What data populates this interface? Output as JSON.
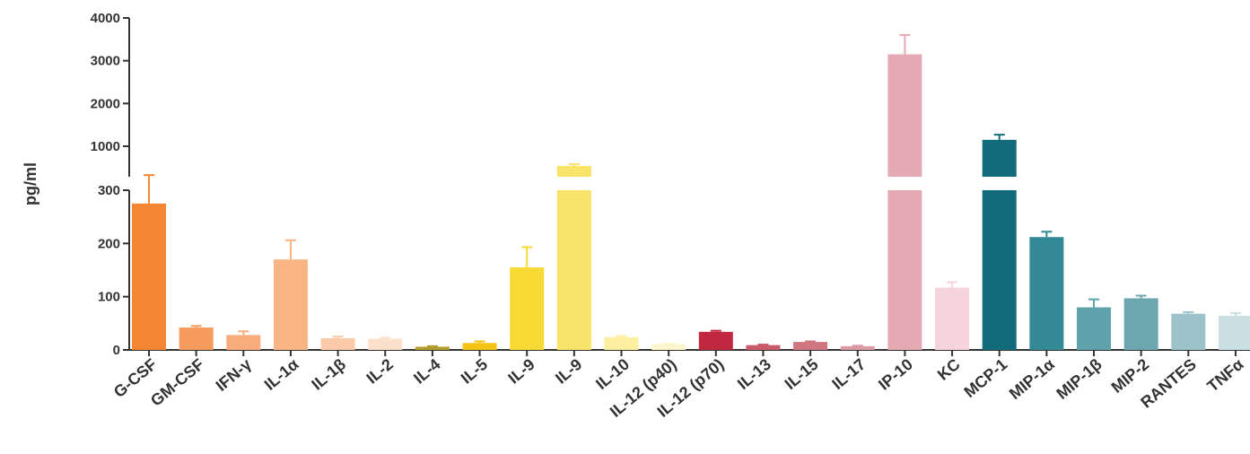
{
  "chart_data": {
    "type": "bar",
    "ylabel": "pg/ml",
    "xlabel": "",
    "axis_break": true,
    "ylim_lower": [
      0,
      300
    ],
    "ylim_upper": [
      300,
      4000
    ],
    "yticks": [
      0,
      100,
      200,
      300,
      1000,
      2000,
      3000,
      4000
    ],
    "categories": [
      "G-CSF",
      "GM-CSF",
      "IFN-γ",
      "IL-1α",
      "IL-1β",
      "IL-2",
      "IL-4",
      "IL-5",
      "IL-9",
      "IL-9",
      "IL-10",
      "IL-12 (p40)",
      "IL-12 (p70)",
      "IL-13",
      "IL-15",
      "IL-17",
      "IP-10",
      "KC",
      "MCP-1",
      "MIP-1α",
      "MIP-1β",
      "MIP-2",
      "RANTES",
      "TNFα"
    ],
    "values": [
      275,
      42,
      28,
      170,
      22,
      21,
      6,
      13,
      155,
      550,
      24,
      11,
      34,
      9,
      15,
      7,
      3150,
      117,
      1150,
      212,
      80,
      97,
      68,
      64
    ],
    "errors": [
      63,
      3,
      7,
      36,
      3,
      2,
      1,
      3,
      38,
      40,
      2,
      1,
      2,
      1,
      1,
      1,
      450,
      10,
      120,
      10,
      15,
      5,
      3,
      5
    ],
    "colors": [
      "#f58634",
      "#f69b5b",
      "#f8ac7c",
      "#fbb584",
      "#fcc9a9",
      "#fde0cc",
      "#b39c2e",
      "#f5c314",
      "#f9da35",
      "#f9e46a",
      "#fcef9f",
      "#fdf5cc",
      "#c1273e",
      "#c95a69",
      "#d17681",
      "#dc9aa4",
      "#e5a9b3",
      "#f5d5db",
      "#126b7a",
      "#338a96",
      "#5fa2ab",
      "#6ca7af",
      "#9bc3c9",
      "#c9dfe2"
    ],
    "tick_labels": {
      "y0": "0",
      "y100": "100",
      "y200": "200",
      "y300": "300",
      "y1000": "1000",
      "y2000": "2000",
      "y3000": "3000",
      "y4000": "4000"
    }
  }
}
